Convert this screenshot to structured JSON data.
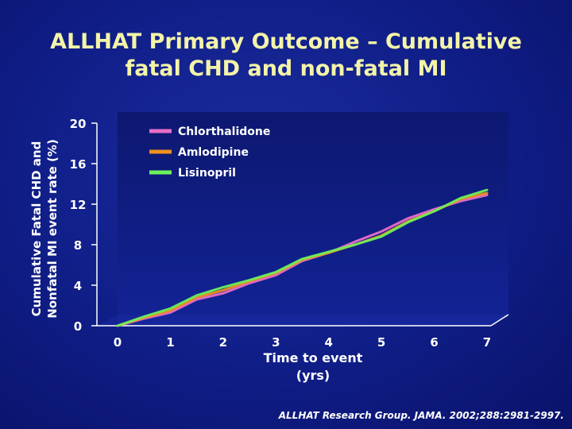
{
  "slide": {
    "title_line1": "ALLHAT Primary Outcome – Cumulative",
    "title_line2": "fatal CHD and non-fatal MI",
    "footer": "ALLHAT Research Group. JAMA. 2002;288:2981-2997."
  },
  "chart_data": {
    "type": "line",
    "title": "ALLHAT Primary Outcome – Cumulative fatal CHD and non-fatal MI",
    "xlabel_line1": "Time to event",
    "xlabel_line2": "(yrs)",
    "ylabel_line1": "Cumulative Fatal CHD and",
    "ylabel_line2": "Nonfatal MI event rate (%)",
    "xlim": [
      0,
      7
    ],
    "ylim": [
      0,
      20
    ],
    "xticks": [
      "0",
      "1",
      "2",
      "3",
      "4",
      "5",
      "6",
      "7"
    ],
    "yticks": [
      "0",
      "4",
      "8",
      "12",
      "16",
      "20"
    ],
    "grid": false,
    "legend_position": "top-left",
    "series": [
      {
        "name": "Chlorthalidone",
        "color": "#e86fc8",
        "x": [
          0,
          0.5,
          1,
          1.5,
          2,
          2.5,
          3,
          3.5,
          4,
          4.5,
          5,
          5.5,
          6,
          6.5,
          7
        ],
        "y": [
          0,
          0.7,
          1.3,
          2.6,
          3.2,
          4.2,
          5.0,
          6.4,
          7.2,
          8.3,
          9.3,
          10.6,
          11.5,
          12.3,
          12.9
        ]
      },
      {
        "name": "Amlodipine",
        "color": "#f0901e",
        "x": [
          0,
          0.5,
          1,
          1.5,
          2,
          2.5,
          3,
          3.5,
          4,
          4.5,
          5,
          5.5,
          6,
          6.5,
          7
        ],
        "y": [
          0,
          0.8,
          1.5,
          2.8,
          3.5,
          4.4,
          5.2,
          6.5,
          7.2,
          8.0,
          8.9,
          10.3,
          11.3,
          12.5,
          13.1
        ]
      },
      {
        "name": "Lisinopril",
        "color": "#6df05a",
        "x": [
          0,
          0.5,
          1,
          1.5,
          2,
          2.5,
          3,
          3.5,
          4,
          4.5,
          5,
          5.5,
          6,
          6.5,
          7
        ],
        "y": [
          0,
          0.9,
          1.7,
          3.0,
          3.8,
          4.5,
          5.3,
          6.6,
          7.3,
          8.0,
          8.8,
          10.2,
          11.3,
          12.6,
          13.4
        ]
      }
    ]
  }
}
